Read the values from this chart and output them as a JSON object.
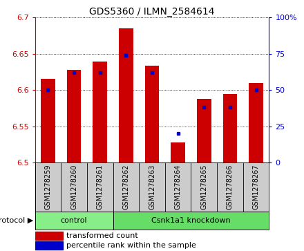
{
  "title": "GDS5360 / ILMN_2584614",
  "samples": [
    "GSM1278259",
    "GSM1278260",
    "GSM1278261",
    "GSM1278262",
    "GSM1278263",
    "GSM1278264",
    "GSM1278265",
    "GSM1278266",
    "GSM1278267"
  ],
  "transformed_counts": [
    6.616,
    6.628,
    6.639,
    6.685,
    6.634,
    6.528,
    6.588,
    6.595,
    6.61
  ],
  "percentile_ranks": [
    50,
    62,
    62,
    74,
    62,
    20,
    38,
    38,
    50
  ],
  "ylim_left": [
    6.5,
    6.7
  ],
  "ylim_right": [
    0,
    100
  ],
  "yticks_left": [
    6.5,
    6.55,
    6.6,
    6.65,
    6.7
  ],
  "yticks_right": [
    0,
    25,
    50,
    75,
    100
  ],
  "bar_color": "#cc0000",
  "percentile_color": "#0000cc",
  "bar_width": 0.55,
  "groups": [
    {
      "label": "control",
      "indices": [
        0,
        1,
        2
      ],
      "color": "#88ee88"
    },
    {
      "label": "Csnk1a1 knockdown",
      "indices": [
        3,
        4,
        5,
        6,
        7,
        8
      ],
      "color": "#66dd66"
    }
  ],
  "protocol_label": "protocol",
  "tick_area_color": "#cccccc",
  "left_axis_color": "#cc0000",
  "right_axis_color": "#0000cc",
  "title_fontsize": 10,
  "axis_fontsize": 8,
  "sample_fontsize": 7,
  "legend_fontsize": 8
}
